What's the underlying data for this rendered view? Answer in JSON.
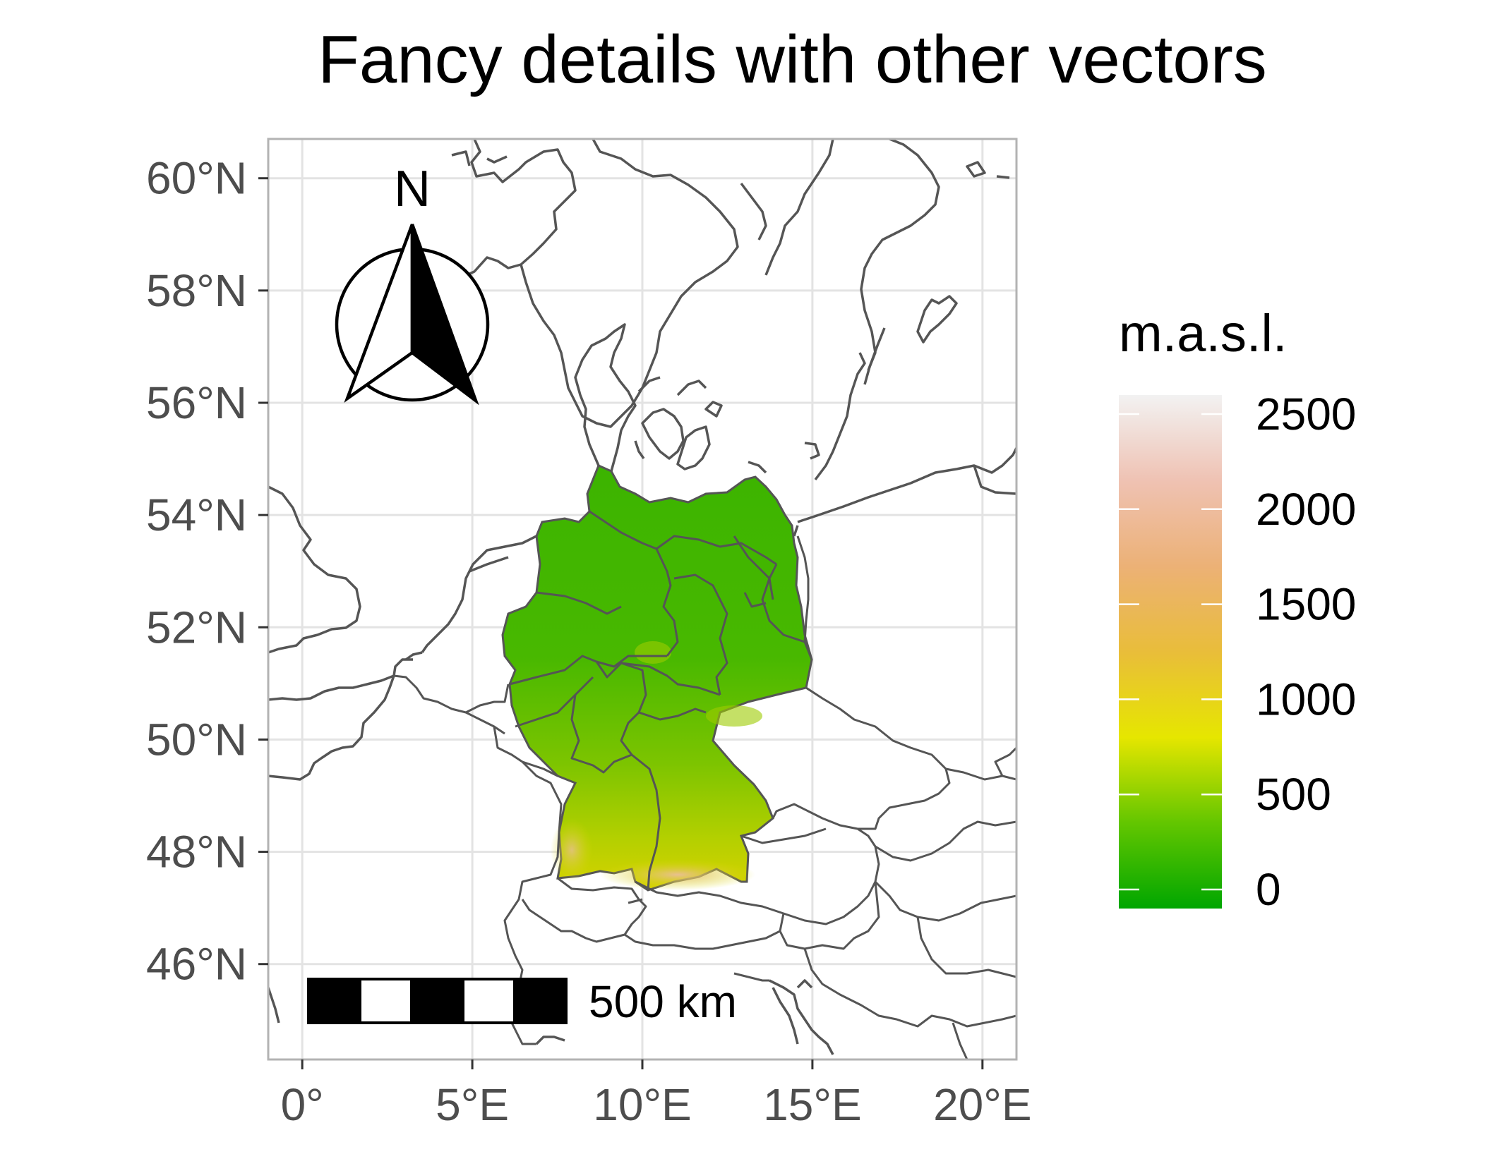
{
  "title": "Fancy details with other vectors",
  "map": {
    "x_ticks": [
      {
        "value": 0,
        "label": "0°"
      },
      {
        "value": 5,
        "label": "5°E"
      },
      {
        "value": 10,
        "label": "10°E"
      },
      {
        "value": 15,
        "label": "15°E"
      },
      {
        "value": 20,
        "label": "20°E"
      }
    ],
    "y_ticks": [
      {
        "value": 60,
        "label": "60°N"
      },
      {
        "value": 58,
        "label": "58°N"
      },
      {
        "value": 56,
        "label": "56°N"
      },
      {
        "value": 54,
        "label": "54°N"
      },
      {
        "value": 52,
        "label": "52°N"
      },
      {
        "value": 50,
        "label": "50°N"
      },
      {
        "value": 48,
        "label": "48°N"
      },
      {
        "value": 46,
        "label": "46°N"
      }
    ],
    "lon_range": [
      -1,
      21
    ],
    "lat_range": [
      44.3,
      60.7
    ],
    "north_arrow_label": "N",
    "scale_bar_label": "500 km",
    "terrain_colors": {
      "low": "#22aa00",
      "mid": "#88cc00",
      "high": "#d8d800",
      "peak": "#e8b090"
    }
  },
  "legend": {
    "title": "m.a.s.l.",
    "gradient": [
      "#00a600",
      "#63c600",
      "#e6e600",
      "#e9bd3a",
      "#ecb176",
      "#efc2b3",
      "#f2f2f2"
    ],
    "range": [
      -100,
      2600
    ],
    "breaks": [
      {
        "value": 0,
        "label": "0"
      },
      {
        "value": 500,
        "label": "500"
      },
      {
        "value": 1000,
        "label": "1000"
      },
      {
        "value": 1500,
        "label": "1500"
      },
      {
        "value": 2000,
        "label": "2000"
      },
      {
        "value": 2500,
        "label": "2500"
      }
    ]
  }
}
